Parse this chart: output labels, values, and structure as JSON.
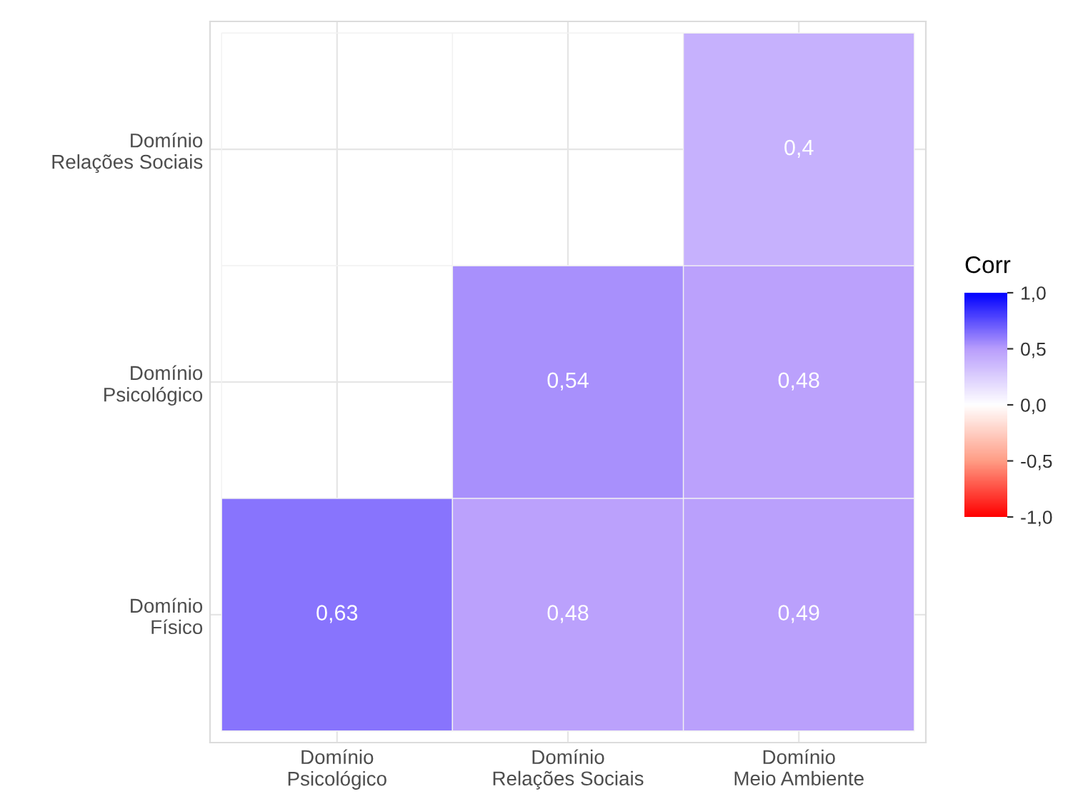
{
  "chart_data": {
    "type": "heatmap",
    "categories": [
      "Domínio\nPsicológico",
      "Domínio\nRelações Sociais",
      "Domínio\nMeio Ambiente"
    ],
    "y_categories": [
      "Domínio\nRelações Sociais",
      "Domínio\nPsicológico",
      "Domínio\nFísico"
    ],
    "cells": [
      [
        null,
        null,
        0.4
      ],
      [
        null,
        0.54,
        0.48
      ],
      [
        0.63,
        0.48,
        0.49
      ]
    ],
    "cell_labels": [
      [
        null,
        null,
        "0,4"
      ],
      [
        null,
        "0,54",
        "0,48"
      ],
      [
        "0,63",
        "0,48",
        "0,49"
      ]
    ],
    "clabel": "Corr",
    "clim": [
      -1,
      1
    ],
    "cticks": [
      {
        "value": 1,
        "label": "1,0"
      },
      {
        "value": 0.5,
        "label": "0,5"
      },
      {
        "value": 0,
        "label": "0,0"
      },
      {
        "value": -0.5,
        "label": "-0,5"
      },
      {
        "value": -1,
        "label": "-1,0"
      }
    ],
    "grid": true
  }
}
